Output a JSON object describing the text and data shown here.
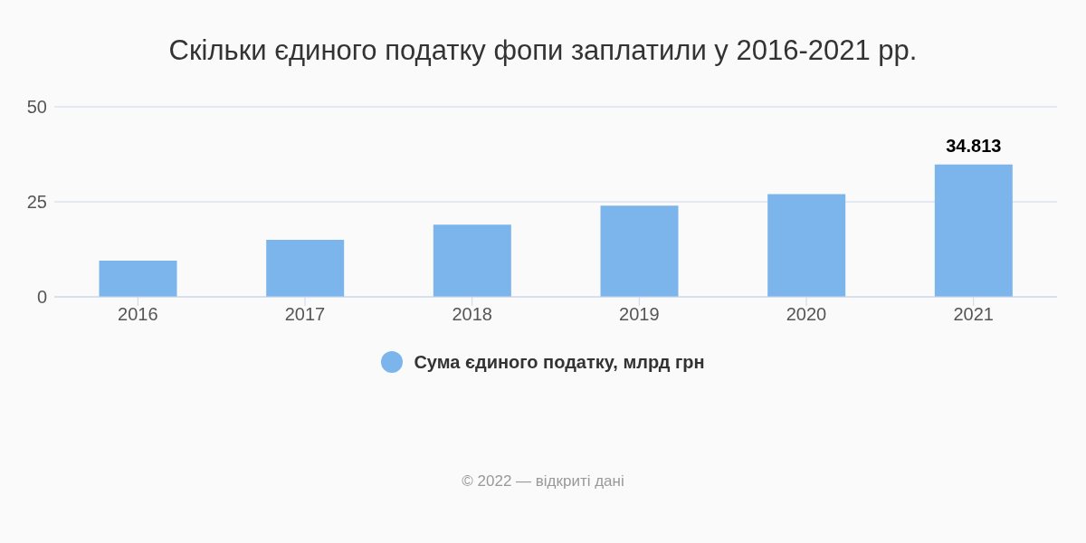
{
  "chart_data": {
    "type": "bar",
    "title": "Скільки єдиного податку фопи заплатили у 2016-2021 рр.",
    "categories": [
      "2016",
      "2017",
      "2018",
      "2019",
      "2020",
      "2021"
    ],
    "series": [
      {
        "name": "Сума єдиного податку, млрд грн",
        "color": "#7cb5ec",
        "values": [
          9.5,
          15,
          19,
          24,
          27,
          34.813
        ],
        "value_labels": [
          null,
          null,
          null,
          null,
          null,
          "34.813"
        ]
      }
    ],
    "ylim": [
      0,
      50
    ],
    "yticks": [
      0,
      25,
      50
    ],
    "grid": "y",
    "legend": "bottom",
    "marker": "circle",
    "annotations": [
      "© 2022 — відкриті дані"
    ]
  }
}
